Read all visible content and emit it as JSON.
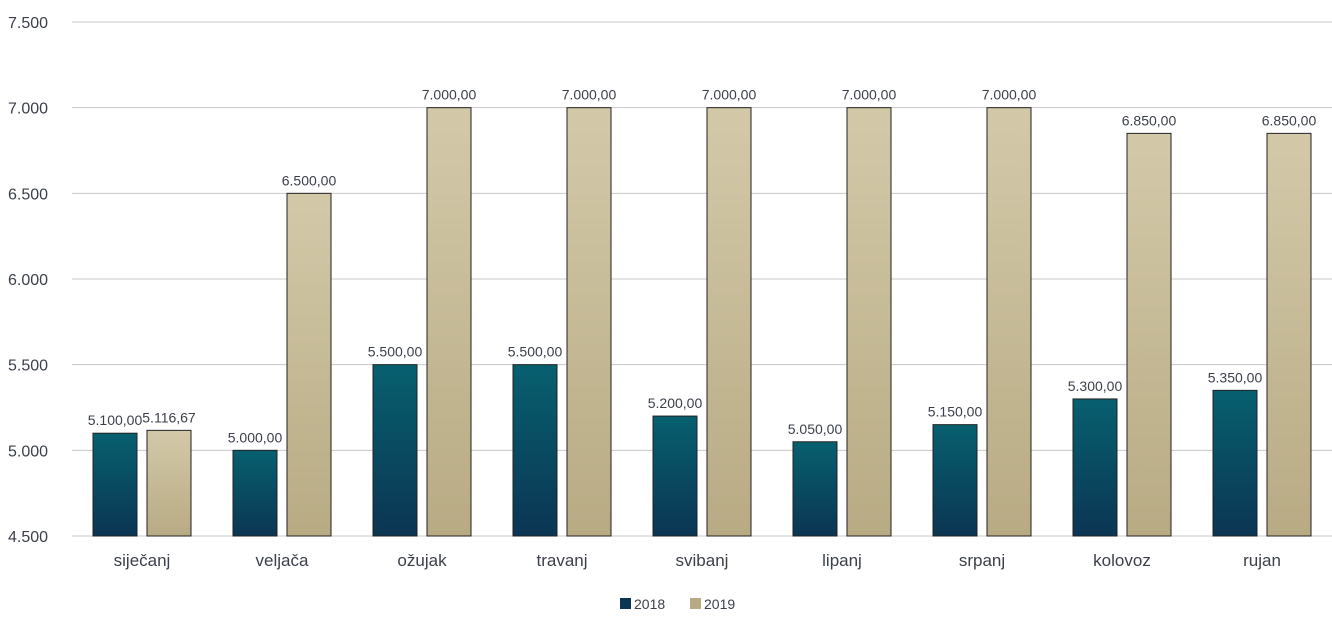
{
  "chart_data": {
    "type": "bar",
    "categories": [
      "siječanj",
      "veljača",
      "ožujak",
      "travanj",
      "svibanj",
      "lipanj",
      "srpanj",
      "kolovoz",
      "rujan"
    ],
    "series": [
      {
        "name": "2018",
        "values": [
          5100,
          5000,
          5500,
          5500,
          5200,
          5050,
          5150,
          5300,
          5350
        ],
        "labels": [
          "5.100,00",
          "5.000,00",
          "5.500,00",
          "5.500,00",
          "5.200,00",
          "5.050,00",
          "5.150,00",
          "5.300,00",
          "5.350,00"
        ],
        "color_top": "#07606f",
        "color_bottom": "#0b3553"
      },
      {
        "name": "2019",
        "values": [
          5116.67,
          6500,
          7000,
          7000,
          7000,
          7000,
          7000,
          6850,
          6850
        ],
        "labels": [
          "5.116,67",
          "6.500,00",
          "7.000,00",
          "7.000,00",
          "7.000,00",
          "7.000,00",
          "7.000,00",
          "6.850,00",
          "6.850,00"
        ],
        "color_top": "#d3c9a9",
        "color_bottom": "#b8ab84"
      }
    ],
    "ylim": [
      4500,
      7500
    ],
    "yticks": [
      4500,
      5000,
      5500,
      6000,
      6500,
      7000,
      7500
    ],
    "ytick_labels": [
      "4.500",
      "5.000",
      "5.500",
      "6.000",
      "6.500",
      "7.000",
      "7.500"
    ],
    "grid": true,
    "legend_position": "bottom-center",
    "title": "",
    "xlabel": "",
    "ylabel": ""
  }
}
